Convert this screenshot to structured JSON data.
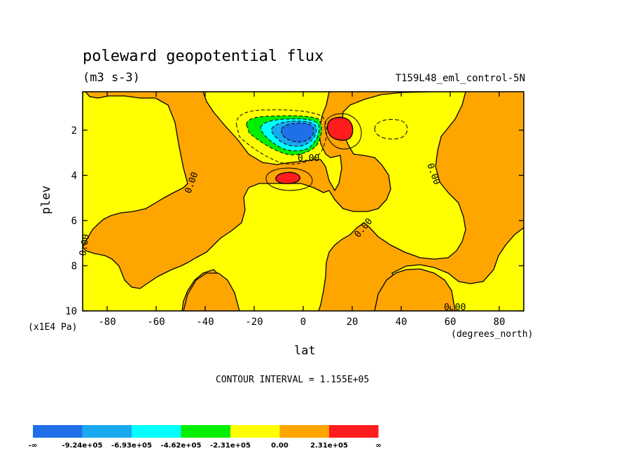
{
  "chart_data": {
    "type": "contour",
    "title": "poleward geopotential flux",
    "units": "(m3 s-3)",
    "dataset": "T159L48_eml_control-5N",
    "xlabel": "lat",
    "x_units": "(degrees_north)",
    "ylabel": "plev",
    "y_units": "(x1E4 Pa)",
    "xlim": [
      -90,
      90
    ],
    "ylim": [
      10,
      0.3
    ],
    "x_ticks": [
      "-80",
      "-60",
      "-40",
      "-20",
      "0",
      "20",
      "40",
      "60",
      "80"
    ],
    "y_ticks": [
      "2",
      "4",
      "6",
      "8",
      "10"
    ],
    "contour_interval_text": "CONTOUR INTERVAL = 1.155E+05",
    "contour_labels": [
      "0.00",
      "0.00",
      "0.00",
      "0.00",
      "0.00",
      "0.00"
    ],
    "colorbar": {
      "colors": [
        "#1f6fe8",
        "#18a8f0",
        "#00ffff",
        "#00ee00",
        "#ffff00",
        "#ffa500",
        "#ff1c1c"
      ],
      "labels": [
        "-∞",
        "-9.24e+05",
        "-6.93e+05",
        "-4.62e+05",
        "-2.31e+05",
        "0.00",
        "2.31e+05",
        "∞"
      ]
    },
    "features": [
      {
        "name": "negative minimum",
        "lat": -5,
        "plev": 1.8,
        "max_level": "-9.24e+05"
      },
      {
        "name": "positive maximum upper",
        "lat": 13,
        "plev": 1.8,
        "max_level": "2.31e+05"
      },
      {
        "name": "positive maximum lower",
        "lat": -6,
        "plev": 4.0,
        "max_level": "2.31e+05"
      }
    ]
  }
}
